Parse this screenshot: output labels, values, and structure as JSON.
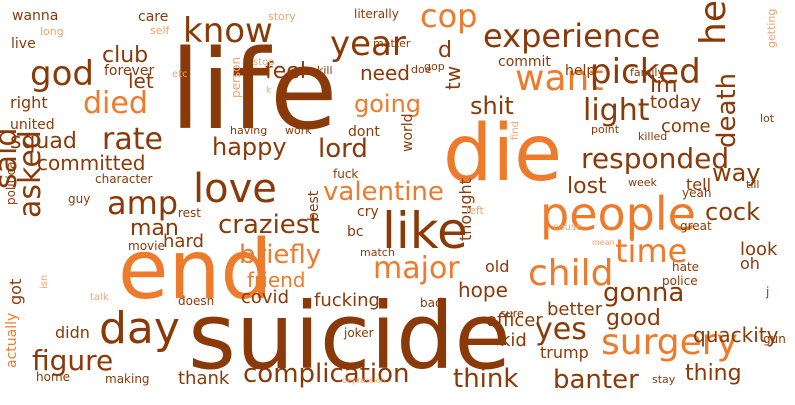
{
  "palette": {
    "dark": "#8a3a08",
    "mid": "#c24f0c",
    "orange": "#ee7a2c",
    "light": "#f4a36a",
    "pale": "#f8c59e"
  },
  "words": [
    {
      "text": "life",
      "color": "dark"
    },
    {
      "text": "suicide",
      "color": "dark"
    },
    {
      "text": "end",
      "color": "orange"
    },
    {
      "text": "die",
      "color": "orange"
    },
    {
      "text": "people",
      "color": "orange"
    },
    {
      "text": "like",
      "color": "dark"
    },
    {
      "text": "love",
      "color": "dark"
    },
    {
      "text": "day",
      "color": "dark"
    },
    {
      "text": "want",
      "color": "orange"
    },
    {
      "text": "know",
      "color": "dark"
    },
    {
      "text": "god",
      "color": "dark"
    },
    {
      "text": "experience",
      "color": "dark"
    },
    {
      "text": "picked",
      "color": "dark"
    },
    {
      "text": "cop",
      "color": "orange"
    },
    {
      "text": "heart",
      "color": "dark"
    },
    {
      "text": "light",
      "color": "dark"
    },
    {
      "text": "rate",
      "color": "dark"
    },
    {
      "text": "died",
      "color": "orange"
    },
    {
      "text": "responded",
      "color": "dark"
    },
    {
      "text": "amp",
      "color": "dark"
    },
    {
      "text": "said",
      "color": "dark"
    },
    {
      "text": "asked",
      "color": "dark"
    },
    {
      "text": "child",
      "color": "orange"
    },
    {
      "text": "surgery",
      "color": "orange"
    },
    {
      "text": "time",
      "color": "orange"
    },
    {
      "text": "figure",
      "color": "dark"
    },
    {
      "text": "complication",
      "color": "dark"
    },
    {
      "text": "yes",
      "color": "dark"
    },
    {
      "text": "major",
      "color": "orange"
    },
    {
      "text": "briefly",
      "color": "orange"
    },
    {
      "text": "craziest",
      "color": "dark"
    },
    {
      "text": "man",
      "color": "dark"
    },
    {
      "text": "year",
      "color": "dark"
    },
    {
      "text": "lord",
      "color": "dark"
    },
    {
      "text": "valentine",
      "color": "orange"
    },
    {
      "text": "happy",
      "color": "dark"
    },
    {
      "text": "going",
      "color": "orange"
    },
    {
      "text": "think",
      "color": "dark"
    },
    {
      "text": "banter",
      "color": "dark"
    },
    {
      "text": "cock",
      "color": "dark"
    },
    {
      "text": "way",
      "color": "dark"
    },
    {
      "text": "gonna",
      "color": "dark"
    },
    {
      "text": "squad",
      "color": "dark"
    },
    {
      "text": "committed",
      "color": "dark"
    },
    {
      "text": "friend",
      "color": "orange"
    },
    {
      "text": "feel",
      "color": "dark"
    },
    {
      "text": "club",
      "color": "dark"
    },
    {
      "text": "let",
      "color": "dark"
    },
    {
      "text": "shit",
      "color": "dark"
    },
    {
      "text": "im",
      "color": "dark"
    },
    {
      "text": "death",
      "color": "dark"
    },
    {
      "text": "tw",
      "color": "dark"
    },
    {
      "text": "d",
      "color": "dark"
    },
    {
      "text": "need",
      "color": "dark"
    },
    {
      "text": "lost",
      "color": "dark"
    },
    {
      "text": "good",
      "color": "dark"
    },
    {
      "text": "thing",
      "color": "dark"
    },
    {
      "text": "quackity",
      "color": "dark"
    },
    {
      "text": "hope",
      "color": "dark"
    },
    {
      "text": "fucking",
      "color": "dark"
    },
    {
      "text": "today",
      "color": "dark"
    },
    {
      "text": "come",
      "color": "dark"
    },
    {
      "text": "officer",
      "color": "dark"
    },
    {
      "text": "trump",
      "color": "dark"
    },
    {
      "text": "thank",
      "color": "dark"
    },
    {
      "text": "hard",
      "color": "dark"
    },
    {
      "text": "better",
      "color": "dark"
    },
    {
      "text": "kid",
      "color": "dark"
    },
    {
      "text": "old",
      "color": "dark"
    },
    {
      "text": "covid",
      "color": "dark"
    },
    {
      "text": "look",
      "color": "dark"
    },
    {
      "text": "oh",
      "color": "dark"
    },
    {
      "text": "tell",
      "color": "dark"
    },
    {
      "text": "got",
      "color": "dark"
    },
    {
      "text": "didn",
      "color": "dark"
    },
    {
      "text": "right",
      "color": "dark"
    },
    {
      "text": "united",
      "color": "dark"
    },
    {
      "text": "forever",
      "color": "dark"
    },
    {
      "text": "wanna",
      "color": "dark"
    },
    {
      "text": "live",
      "color": "dark"
    },
    {
      "text": "care",
      "color": "dark"
    },
    {
      "text": "commit",
      "color": "dark"
    },
    {
      "text": "help",
      "color": "dark"
    },
    {
      "text": "dont",
      "color": "dark"
    },
    {
      "text": "world",
      "color": "dark"
    },
    {
      "text": "thought",
      "color": "dark"
    },
    {
      "text": "cry",
      "color": "dark"
    },
    {
      "text": "bc",
      "color": "dark"
    },
    {
      "text": "best",
      "color": "dark"
    },
    {
      "text": "fuck",
      "color": "dark"
    },
    {
      "text": "yeah",
      "color": "dark"
    },
    {
      "text": "rest",
      "color": "dark"
    },
    {
      "text": "movie",
      "color": "dark"
    },
    {
      "text": "guy",
      "color": "dark"
    },
    {
      "text": "character",
      "color": "dark"
    },
    {
      "text": "political",
      "color": "dark"
    },
    {
      "text": "actually",
      "color": "orange"
    },
    {
      "text": "home",
      "color": "dark"
    },
    {
      "text": "making",
      "color": "dark"
    },
    {
      "text": "doesn",
      "color": "dark"
    },
    {
      "text": "joker",
      "color": "dark"
    },
    {
      "text": "bad",
      "color": "dark"
    },
    {
      "text": "hate",
      "color": "dark"
    },
    {
      "text": "police",
      "color": "dark"
    },
    {
      "text": "great",
      "color": "dark"
    },
    {
      "text": "stay",
      "color": "dark"
    },
    {
      "text": "gun",
      "color": "dark"
    },
    {
      "text": "sure",
      "color": "dark"
    },
    {
      "text": "week",
      "color": "dark"
    },
    {
      "text": "killed",
      "color": "dark"
    },
    {
      "text": "point",
      "color": "dark"
    },
    {
      "text": "lot",
      "color": "dark"
    },
    {
      "text": "till",
      "color": "dark"
    },
    {
      "text": "family",
      "color": "dark"
    },
    {
      "text": "kill",
      "color": "dark"
    },
    {
      "text": "gop",
      "color": "dark"
    },
    {
      "text": "doe",
      "color": "dark"
    },
    {
      "text": "matter",
      "color": "dark"
    },
    {
      "text": "literally",
      "color": "dark"
    },
    {
      "text": "story",
      "color": "light"
    },
    {
      "text": "long",
      "color": "light"
    },
    {
      "text": "self",
      "color": "light"
    },
    {
      "text": "etc",
      "color": "light"
    },
    {
      "text": "stop",
      "color": "light"
    },
    {
      "text": "person",
      "color": "light"
    },
    {
      "text": "work",
      "color": "dark"
    },
    {
      "text": "having",
      "color": "dark"
    },
    {
      "text": "talk",
      "color": "light"
    },
    {
      "text": "match",
      "color": "dark"
    },
    {
      "text": "find",
      "color": "light"
    },
    {
      "text": "left",
      "color": "light"
    },
    {
      "text": "cause",
      "color": "light"
    },
    {
      "text": "mean",
      "color": "light"
    },
    {
      "text": "isn",
      "color": "light"
    },
    {
      "text": "getting",
      "color": "light"
    },
    {
      "text": "depression",
      "color": "light"
    },
    {
      "text": "k",
      "color": "light"
    },
    {
      "text": "j",
      "color": "dark"
    }
  ]
}
